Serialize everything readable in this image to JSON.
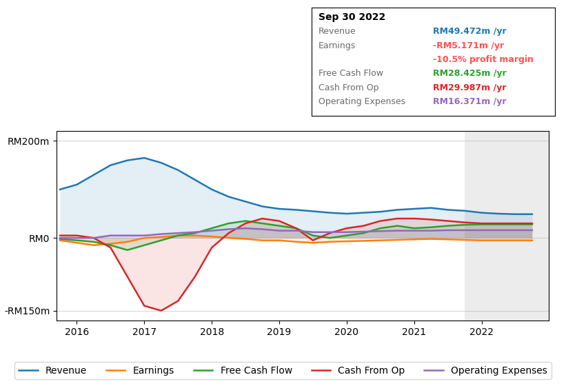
{
  "chart_data": {
    "type": "line",
    "title": "Sep 30 2022",
    "x": [
      2015.75,
      2016.0,
      2016.25,
      2016.5,
      2016.75,
      2017.0,
      2017.25,
      2017.5,
      2017.75,
      2018.0,
      2018.25,
      2018.5,
      2018.75,
      2019.0,
      2019.25,
      2019.5,
      2019.75,
      2020.0,
      2020.25,
      2020.5,
      2020.75,
      2021.0,
      2021.25,
      2021.5,
      2021.75,
      2022.0,
      2022.25,
      2022.5,
      2022.75
    ],
    "series": [
      {
        "name": "Revenue",
        "values": [
          100,
          110,
          130,
          150,
          160,
          165,
          155,
          140,
          120,
          100,
          85,
          75,
          65,
          60,
          58,
          55,
          52,
          50,
          52,
          54,
          58,
          60,
          62,
          58,
          56,
          52,
          50,
          49,
          49
        ]
      },
      {
        "name": "Earnings",
        "values": [
          -5,
          -10,
          -15,
          -12,
          -8,
          0,
          2,
          5,
          5,
          3,
          0,
          -2,
          -5,
          -5,
          -8,
          -10,
          -8,
          -7,
          -6,
          -5,
          -4,
          -3,
          -2,
          -3,
          -4,
          -5,
          -5,
          -5,
          -5
        ]
      },
      {
        "name": "Free Cash Flow",
        "values": [
          -2,
          -5,
          -8,
          -15,
          -25,
          -15,
          -5,
          5,
          10,
          20,
          30,
          35,
          30,
          25,
          20,
          5,
          0,
          5,
          10,
          20,
          25,
          20,
          22,
          25,
          27,
          28,
          28,
          28,
          28
        ]
      },
      {
        "name": "Cash From Op",
        "values": [
          5,
          5,
          0,
          -20,
          -80,
          -140,
          -150,
          -130,
          -80,
          -20,
          10,
          30,
          40,
          35,
          20,
          -5,
          10,
          20,
          25,
          35,
          40,
          40,
          38,
          35,
          32,
          30,
          30,
          30,
          30
        ]
      },
      {
        "name": "Operating Expenses",
        "values": [
          0,
          0,
          0,
          5,
          5,
          5,
          8,
          10,
          12,
          15,
          18,
          20,
          18,
          15,
          15,
          12,
          12,
          12,
          13,
          14,
          15,
          15,
          15,
          16,
          16,
          16,
          16,
          16,
          16
        ]
      }
    ],
    "xlim": [
      2015.7,
      2023.0
    ],
    "xticks": [
      2016,
      2017,
      2018,
      2019,
      2020,
      2021,
      2022
    ],
    "ylim": [
      -170,
      220
    ],
    "yticks": [
      {
        "value": 200,
        "label": "RM200m"
      },
      {
        "value": 0,
        "label": "RM0"
      },
      {
        "value": -150,
        "label": "-RM150m"
      }
    ],
    "grid": true,
    "legend": "lower center",
    "highlight_x": [
      2021.75,
      2023.0
    ],
    "annotations": [
      {
        "name": "Revenue",
        "text": "RM49.472m /yr"
      },
      {
        "name": "Earnings",
        "text": "-RM5.171m /yr",
        "color": "#ff5252"
      },
      {
        "text": "-10.5% profit margin",
        "color": "#ff5252"
      },
      {
        "name": "Free Cash Flow",
        "text": "RM28.425m /yr"
      },
      {
        "name": "Cash From Op",
        "text": "RM29.987m /yr"
      },
      {
        "name": "Operating Expenses",
        "text": "RM16.371m /yr"
      }
    ]
  }
}
